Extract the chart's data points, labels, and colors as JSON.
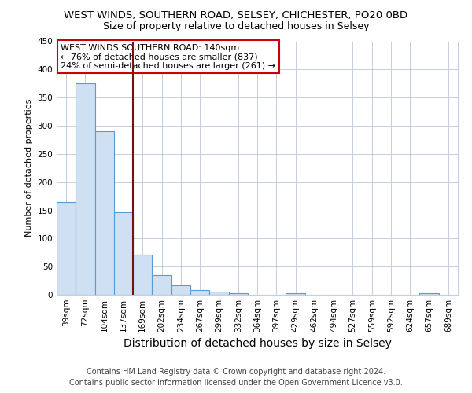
{
  "title": "WEST WINDS, SOUTHERN ROAD, SELSEY, CHICHESTER, PO20 0BD",
  "subtitle": "Size of property relative to detached houses in Selsey",
  "xlabel": "Distribution of detached houses by size in Selsey",
  "ylabel": "Number of detached properties",
  "footer_line1": "Contains HM Land Registry data © Crown copyright and database right 2024.",
  "footer_line2": "Contains public sector information licensed under the Open Government Licence v3.0.",
  "annotation_line1": "WEST WINDS SOUTHERN ROAD: 140sqm",
  "annotation_line2": "← 76% of detached houses are smaller (837)",
  "annotation_line3": "24% of semi-detached houses are larger (261) →",
  "bar_labels": [
    "39sqm",
    "72sqm",
    "104sqm",
    "137sqm",
    "169sqm",
    "202sqm",
    "234sqm",
    "267sqm",
    "299sqm",
    "332sqm",
    "364sqm",
    "397sqm",
    "429sqm",
    "462sqm",
    "494sqm",
    "527sqm",
    "559sqm",
    "592sqm",
    "624sqm",
    "657sqm",
    "689sqm"
  ],
  "bar_values": [
    165,
    375,
    290,
    147,
    71,
    35,
    17,
    8,
    5,
    3,
    0,
    0,
    3,
    0,
    0,
    0,
    0,
    0,
    0,
    3,
    0
  ],
  "bar_color": "#cfe0f3",
  "bar_edge_color": "#5b9bd5",
  "vline_color": "#7b1010",
  "ylim": [
    0,
    450
  ],
  "yticks": [
    0,
    50,
    100,
    150,
    200,
    250,
    300,
    350,
    400,
    450
  ],
  "background_color": "#ffffff",
  "grid_color": "#b8c8dc",
  "title_fontsize": 9.5,
  "subtitle_fontsize": 9,
  "xlabel_fontsize": 10,
  "ylabel_fontsize": 8,
  "tick_fontsize": 7.5,
  "footer_fontsize": 7,
  "annotation_fontsize": 8
}
